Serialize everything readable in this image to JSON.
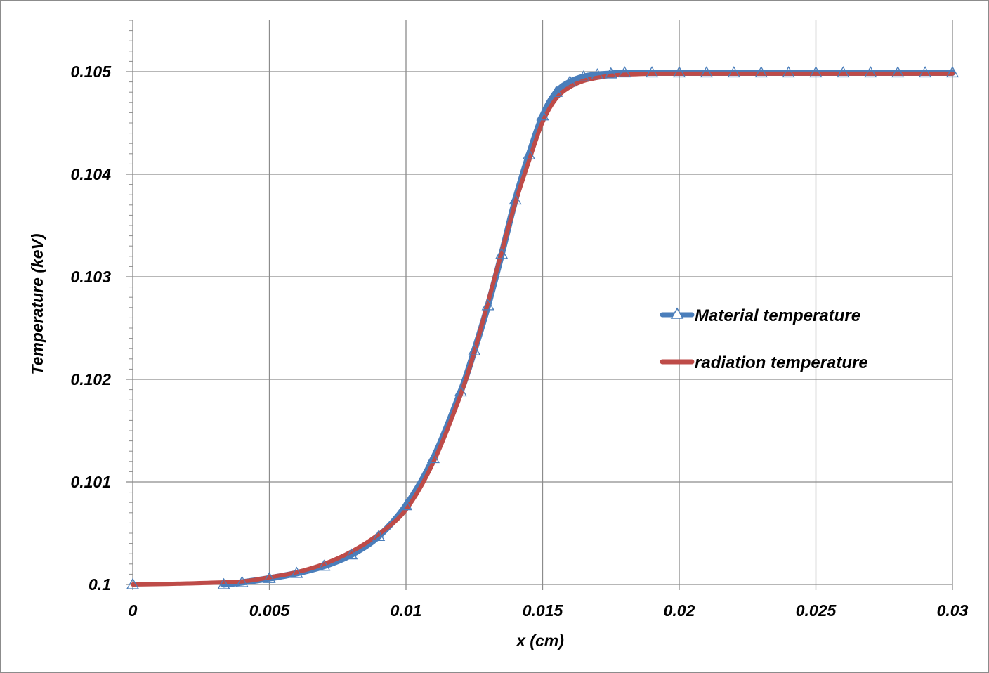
{
  "chart_data": {
    "type": "line",
    "xlabel": "x (cm)",
    "ylabel": "Temperature (keV)",
    "xlim": [
      0,
      0.03
    ],
    "ylim": [
      0.1,
      0.1055
    ],
    "x_ticks": [
      "0",
      "0.005",
      "0.01",
      "0.015",
      "0.02",
      "0.025",
      "0.03"
    ],
    "y_ticks": [
      "0.1",
      "0.101",
      "0.102",
      "0.103",
      "0.104",
      "0.105"
    ],
    "grid": true,
    "legend_position": "right",
    "colors": {
      "material": "#4a7ebb",
      "radiation": "#be4b48"
    },
    "series": [
      {
        "name": "Material temperature",
        "marker": "triangle",
        "x": [
          0,
          0.00333,
          0.004,
          0.005,
          0.006,
          0.007,
          0.008,
          0.009,
          0.01,
          0.011,
          0.012,
          0.0125,
          0.013,
          0.0135,
          0.014,
          0.0145,
          0.015,
          0.0155,
          0.016,
          0.0165,
          0.017,
          0.0175,
          0.018,
          0.019,
          0.02,
          0.021,
          0.022,
          0.023,
          0.024,
          0.025,
          0.026,
          0.027,
          0.028,
          0.029,
          0.03
        ],
        "y": [
          0.1,
          0.1,
          0.10002,
          0.10006,
          0.10011,
          0.10018,
          0.10029,
          0.10047,
          0.10077,
          0.10123,
          0.10188,
          0.10228,
          0.10272,
          0.10322,
          0.10375,
          0.10419,
          0.10457,
          0.1048,
          0.1049,
          0.10495,
          0.10497,
          0.10498,
          0.10499,
          0.10499,
          0.10499,
          0.10499,
          0.10499,
          0.10499,
          0.10499,
          0.10499,
          0.10499,
          0.10499,
          0.10499,
          0.10499,
          0.10499
        ]
      },
      {
        "name": "radiation temperature",
        "x": [
          0,
          0.002,
          0.004,
          0.005,
          0.006,
          0.007,
          0.008,
          0.009,
          0.01,
          0.011,
          0.012,
          0.0125,
          0.013,
          0.0135,
          0.014,
          0.0145,
          0.015,
          0.0155,
          0.016,
          0.0165,
          0.017,
          0.0175,
          0.018,
          0.019,
          0.02,
          0.021,
          0.022,
          0.023,
          0.024,
          0.025,
          0.026,
          0.027,
          0.028,
          0.029,
          0.03
        ],
        "y": [
          0.1,
          0.10001,
          0.10003,
          0.10007,
          0.10012,
          0.1002,
          0.10032,
          0.10049,
          0.10073,
          0.10119,
          0.10185,
          0.10227,
          0.10275,
          0.10324,
          0.10372,
          0.10413,
          0.10451,
          0.10474,
          0.10485,
          0.10491,
          0.10494,
          0.10496,
          0.10497,
          0.10498,
          0.10498,
          0.10498,
          0.10498,
          0.10498,
          0.10498,
          0.10498,
          0.10498,
          0.10498,
          0.10498,
          0.10498,
          0.10498
        ]
      }
    ]
  }
}
